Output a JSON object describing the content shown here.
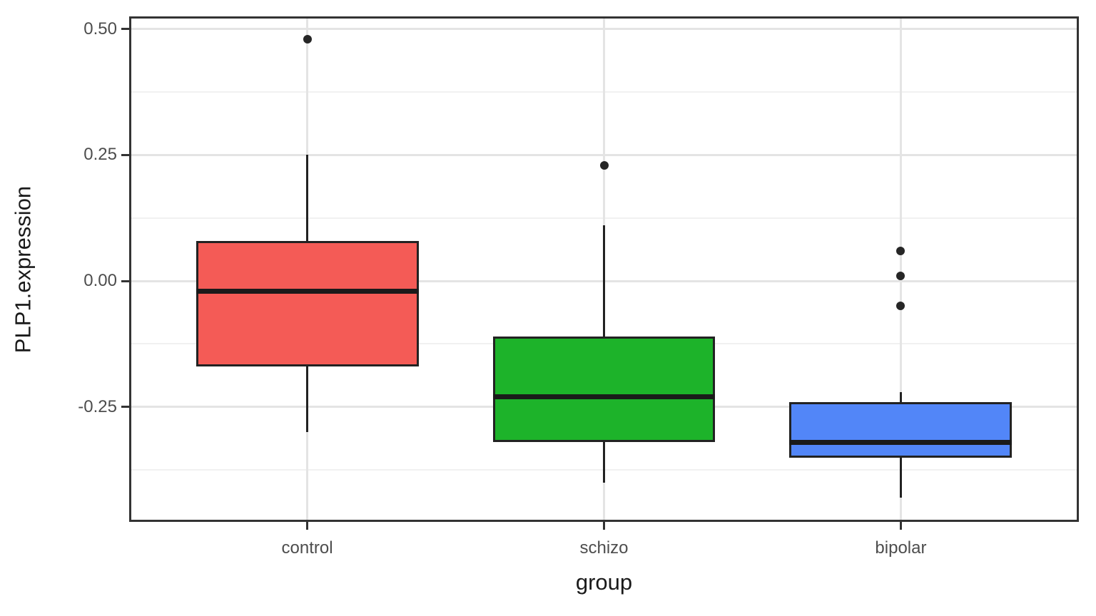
{
  "chart_data": {
    "type": "boxplot",
    "title": "",
    "xlabel": "group",
    "ylabel": "PLP1.expression",
    "categories": [
      "control",
      "schizo",
      "bipolar"
    ],
    "ylim": [
      -0.478,
      0.525
    ],
    "y_ticks": [
      {
        "label": "0.50",
        "value": 0.5
      },
      {
        "label": "0.25",
        "value": 0.25
      },
      {
        "label": "0.00",
        "value": 0.0
      },
      {
        "label": "-0.25",
        "value": -0.25
      }
    ],
    "y_minor_ticks": [
      0.375,
      0.125,
      -0.125,
      -0.375
    ],
    "grid": {
      "horizontal_major": true,
      "horizontal_minor": true,
      "vertical_at_categories": true
    },
    "legend": "none",
    "series": [
      {
        "name": "control",
        "fill": "#F45B56",
        "whisker_min": -0.3,
        "q1": -0.17,
        "median": -0.02,
        "q3": 0.08,
        "whisker_max": 0.25,
        "outliers": [
          0.48
        ]
      },
      {
        "name": "schizo",
        "fill": "#1DB32A",
        "whisker_min": -0.4,
        "q1": -0.32,
        "median": -0.23,
        "q3": -0.11,
        "whisker_max": 0.11,
        "outliers": [
          0.23
        ]
      },
      {
        "name": "bipolar",
        "fill": "#5286F8",
        "whisker_min": -0.43,
        "q1": -0.35,
        "median": -0.32,
        "q3": -0.24,
        "whisker_max": -0.22,
        "outliers": [
          0.06,
          0.01,
          -0.05
        ]
      }
    ],
    "colors": {
      "background": "#FFFFFF",
      "panel_background": "#FFFFFF",
      "panel_border": "#333333",
      "grid_major": "#E4E4E4",
      "grid_minor": "#F1F1F1",
      "box_border": "#222222",
      "median": "#1A1A1A",
      "whisker": "#222222",
      "outlier": "#262626",
      "tick_mark": "#333333",
      "tick_label": "#4D4D4D",
      "axis_title": "#1A1A1A"
    }
  }
}
